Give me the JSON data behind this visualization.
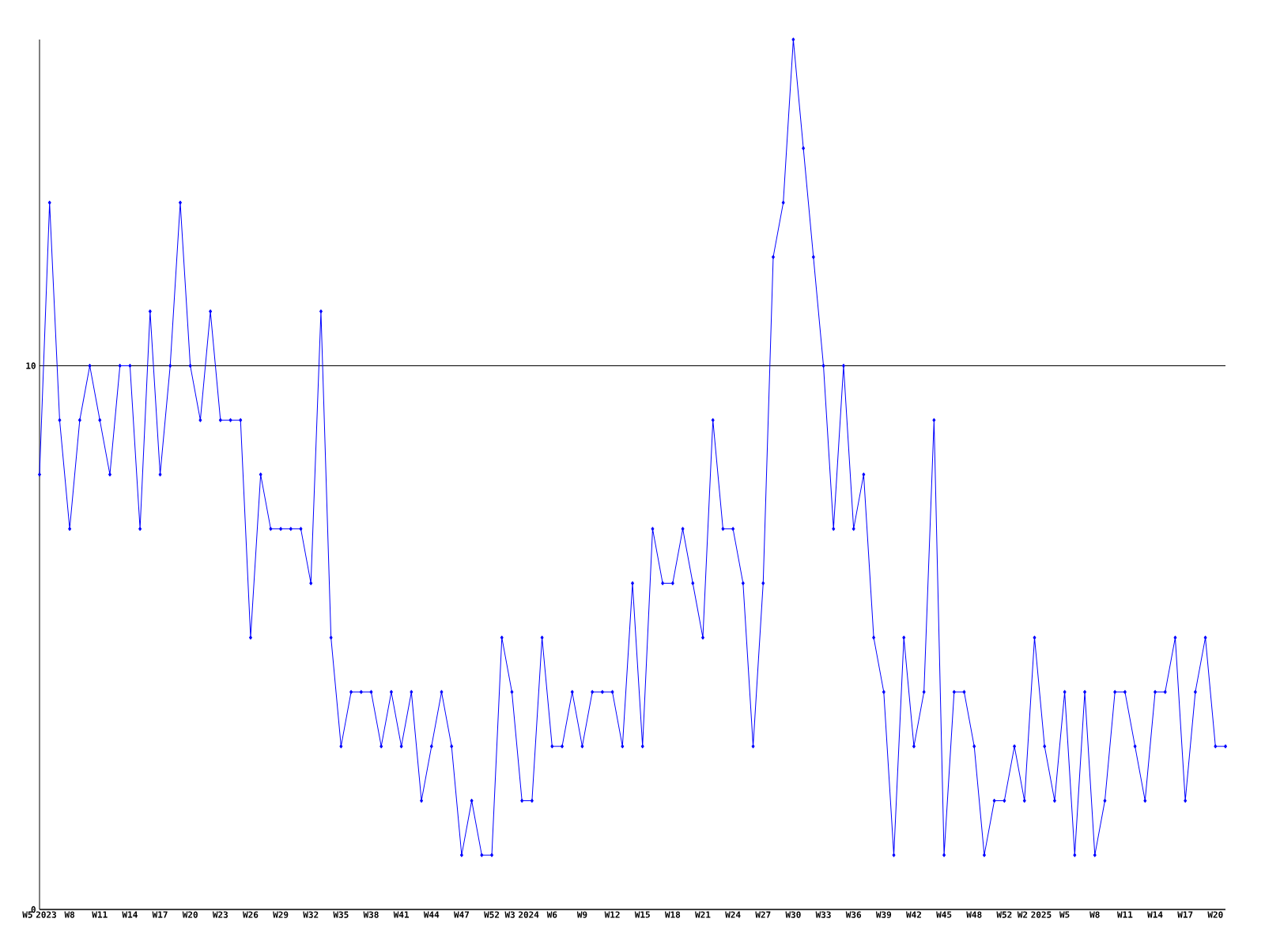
{
  "chart_data": {
    "type": "line",
    "categories": [
      "W5 2023",
      null,
      null,
      "W8",
      null,
      null,
      "W11",
      null,
      null,
      "W14",
      null,
      null,
      "W17",
      null,
      null,
      "W20",
      null,
      null,
      "W23",
      null,
      null,
      "W26",
      null,
      null,
      "W29",
      null,
      null,
      "W32",
      null,
      null,
      "W35",
      null,
      null,
      "W38",
      null,
      null,
      "W41",
      null,
      null,
      "W44",
      null,
      null,
      "W47",
      null,
      null,
      "W52",
      null,
      null,
      "W3 2024",
      null,
      null,
      "W6",
      null,
      null,
      "W9",
      null,
      null,
      "W12",
      null,
      null,
      "W15",
      null,
      null,
      "W18",
      null,
      null,
      "W21",
      null,
      null,
      "W24",
      null,
      null,
      "W27",
      null,
      null,
      "W30",
      null,
      null,
      "W33",
      null,
      null,
      "W36",
      null,
      null,
      "W39",
      null,
      null,
      "W42",
      null,
      null,
      "W45",
      null,
      null,
      "W48",
      null,
      null,
      "W52",
      null,
      null,
      "W2 2025",
      null,
      null,
      "W5",
      null,
      null,
      "W8",
      null,
      null,
      "W11",
      null,
      null,
      "W14",
      null,
      null,
      "W17",
      null,
      null,
      "W20",
      null
    ],
    "values": [
      8,
      13,
      9,
      7,
      9,
      10,
      9,
      8,
      10,
      10,
      7,
      11,
      8,
      10,
      13,
      10,
      9,
      11,
      9,
      9,
      9,
      5,
      8,
      7,
      7,
      7,
      7,
      6,
      11,
      5,
      3,
      4,
      4,
      4,
      3,
      4,
      3,
      4,
      2,
      3,
      4,
      3,
      1,
      2,
      1,
      1,
      5,
      4,
      2,
      2,
      5,
      3,
      3,
      4,
      3,
      4,
      4,
      4,
      3,
      6,
      3,
      7,
      6,
      6,
      7,
      6,
      5,
      9,
      7,
      7,
      6,
      3,
      6,
      12,
      13,
      16,
      14,
      12,
      10,
      7,
      10,
      7,
      8,
      5,
      4,
      1,
      5,
      3,
      4,
      9,
      1,
      4,
      4,
      3,
      1,
      2,
      2,
      3,
      2,
      5,
      3,
      2,
      4,
      1,
      4,
      1,
      2,
      4,
      4,
      3,
      2,
      4,
      4,
      5,
      2,
      4,
      5,
      3,
      3
    ],
    "color": "#0000ff",
    "ylim": [
      0,
      16
    ],
    "yticks": [
      0,
      10
    ],
    "grid": "y",
    "marker": "diamond",
    "line_style": "solid"
  }
}
